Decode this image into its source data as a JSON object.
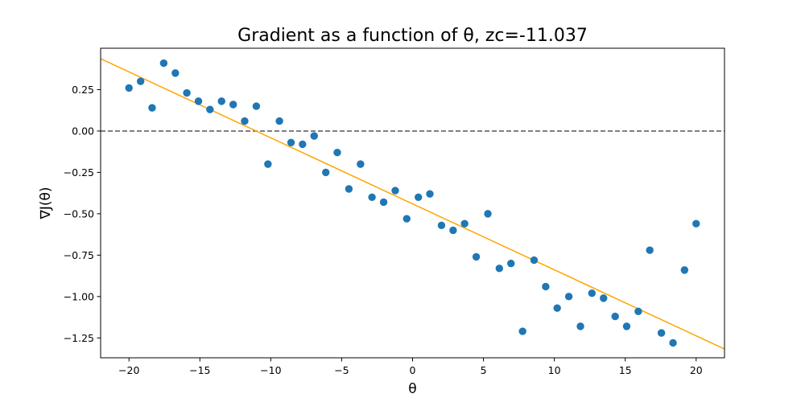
{
  "chart_data": {
    "type": "scatter",
    "title": "Gradient as a function of θ, zc=-11.037",
    "xlabel": "θ",
    "ylabel": "∇J(θ)",
    "xlim": [
      -22,
      22
    ],
    "ylim": [
      -1.37,
      0.5
    ],
    "xticks": [
      -20,
      -15,
      -10,
      -5,
      0,
      5,
      10,
      15,
      20
    ],
    "xtick_labels": [
      "−20",
      "−15",
      "−10",
      "−5",
      "0",
      "5",
      "10",
      "15",
      "20"
    ],
    "yticks": [
      0.25,
      0.0,
      -0.25,
      -0.5,
      -0.75,
      -1.0,
      -1.25
    ],
    "ytick_labels": [
      "0.25",
      "0.00",
      "−0.25",
      "−0.50",
      "−0.75",
      "−1.00",
      "−1.25"
    ],
    "grid": false,
    "colors": {
      "points": "#1f77b4",
      "fit_line": "#ffa500",
      "zero_line": "#555555"
    },
    "points": {
      "x": [
        -20.0,
        -19.18,
        -18.37,
        -17.55,
        -16.73,
        -15.92,
        -15.1,
        -14.29,
        -13.47,
        -12.65,
        -11.84,
        -11.02,
        -10.2,
        -9.39,
        -8.57,
        -7.76,
        -6.94,
        -6.12,
        -5.31,
        -4.49,
        -3.67,
        -2.86,
        -2.04,
        -1.22,
        -0.41,
        0.41,
        1.22,
        2.04,
        2.86,
        3.67,
        4.49,
        5.31,
        6.12,
        6.94,
        7.76,
        8.57,
        9.39,
        10.2,
        11.02,
        11.84,
        12.65,
        13.47,
        14.29,
        15.1,
        15.92,
        16.73,
        17.55,
        18.37,
        19.18,
        20.0
      ],
      "y": [
        0.26,
        0.3,
        0.14,
        0.41,
        0.35,
        0.23,
        0.18,
        0.13,
        0.18,
        0.16,
        0.06,
        0.15,
        -0.2,
        0.06,
        -0.07,
        -0.08,
        -0.03,
        -0.25,
        -0.13,
        -0.35,
        -0.2,
        -0.4,
        -0.43,
        -0.36,
        -0.53,
        -0.4,
        -0.38,
        -0.57,
        -0.6,
        -0.56,
        -0.76,
        -0.5,
        -0.83,
        -0.8,
        -1.21,
        -0.78,
        -0.94,
        -1.07,
        -1.0,
        -1.18,
        -0.98,
        -1.01,
        -1.12,
        -1.18,
        -1.09,
        -0.72,
        -1.22,
        -1.28,
        -0.84,
        -0.56
      ]
    },
    "fit_line": {
      "x": [
        -22,
        22
      ],
      "y": [
        0.437,
        -1.317
      ]
    },
    "zero_line": {
      "y": 0.0,
      "style": "dashed"
    }
  }
}
